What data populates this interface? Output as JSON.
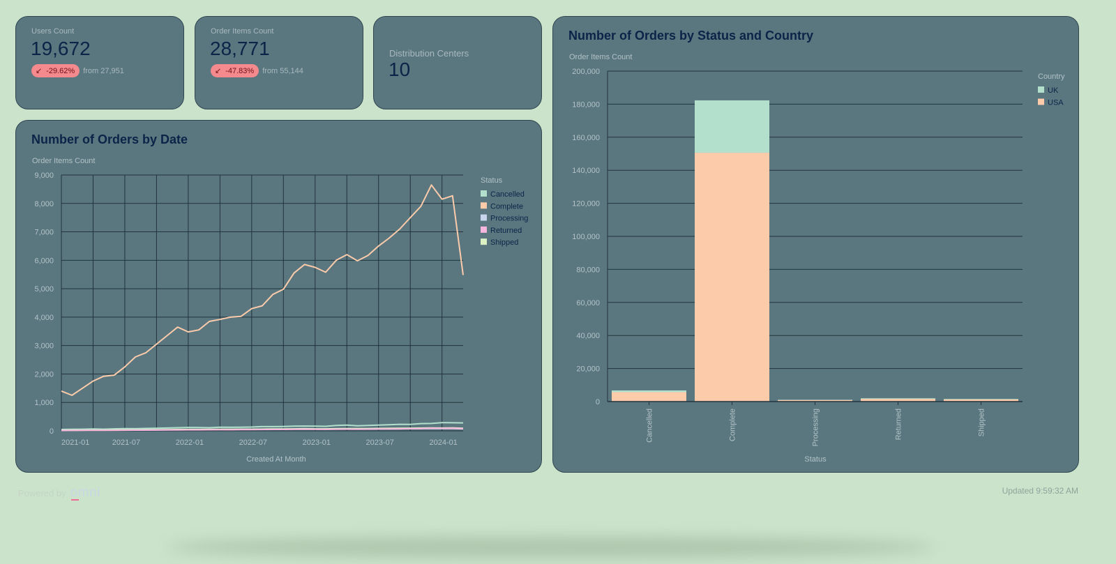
{
  "kpis": [
    {
      "label": "Users Count",
      "value": "19,672",
      "change": "-29.62%",
      "from": "from 27,951",
      "icon": "arrow-down-left-icon"
    },
    {
      "label": "Order Items Count",
      "value": "28,771",
      "change": "-47.83%",
      "from": "from 55,144",
      "icon": "arrow-down-left-icon"
    },
    {
      "label": "Distribution Centers",
      "value": "10"
    }
  ],
  "colors": {
    "background": "#cce3cb",
    "card": "#5a7780",
    "text": "#0d2347",
    "badge": "#f58a8e"
  },
  "footer": {
    "powered_by": "Powered by",
    "brand": "omni",
    "updated": "Updated 9:59:32 AM"
  },
  "chart_data": [
    {
      "type": "line",
      "title": "Number of Orders by Date",
      "ylabel": "Order Items Count",
      "xlabel": "Created At Month",
      "ylim": [
        0,
        9000
      ],
      "yticks": [
        "0",
        "1,000",
        "2,000",
        "3,000",
        "4,000",
        "5,000",
        "6,000",
        "7,000",
        "8,000",
        "9,000"
      ],
      "xticks": [
        "2021-01",
        "2021-07",
        "2022-01",
        "2022-07",
        "2023-01",
        "2023-07",
        "2024-01"
      ],
      "grid": true,
      "legend_title": "Status",
      "legend_position": "right",
      "x": [
        "2021-01",
        "2021-02",
        "2021-03",
        "2021-04",
        "2021-05",
        "2021-06",
        "2021-07",
        "2021-08",
        "2021-09",
        "2021-10",
        "2021-11",
        "2021-12",
        "2022-01",
        "2022-02",
        "2022-03",
        "2022-04",
        "2022-05",
        "2022-06",
        "2022-07",
        "2022-08",
        "2022-09",
        "2022-10",
        "2022-11",
        "2022-12",
        "2023-01",
        "2023-02",
        "2023-03",
        "2023-04",
        "2023-05",
        "2023-06",
        "2023-07",
        "2023-08",
        "2023-09",
        "2023-10",
        "2023-11",
        "2023-12",
        "2024-01",
        "2024-02",
        "2024-03"
      ],
      "series": [
        {
          "name": "Cancelled",
          "color": "#b2e0cc",
          "values": [
            50,
            55,
            60,
            65,
            60,
            70,
            80,
            75,
            85,
            90,
            100,
            110,
            120,
            115,
            110,
            130,
            125,
            130,
            135,
            150,
            150,
            155,
            165,
            170,
            165,
            160,
            190,
            200,
            180,
            190,
            200,
            215,
            230,
            225,
            255,
            260,
            290,
            285,
            280
          ]
        },
        {
          "name": "Complete",
          "color": "#fccbaa",
          "values": [
            1400,
            1250,
            1500,
            1750,
            1920,
            1960,
            2250,
            2600,
            2750,
            3050,
            3350,
            3650,
            3480,
            3550,
            3850,
            3920,
            4000,
            4030,
            4300,
            4400,
            4800,
            4980,
            5550,
            5850,
            5750,
            5580,
            6000,
            6200,
            5980,
            6170,
            6500,
            6780,
            7100,
            7500,
            7900,
            8650,
            8150,
            8270,
            5480
          ]
        },
        {
          "name": "Processing",
          "color": "#c8d6ec",
          "values": [
            15,
            18,
            20,
            22,
            22,
            25,
            28,
            28,
            30,
            32,
            35,
            38,
            40,
            40,
            42,
            45,
            45,
            48,
            50,
            52,
            55,
            55,
            58,
            60,
            60,
            58,
            62,
            65,
            62,
            65,
            68,
            70,
            72,
            75,
            78,
            82,
            80,
            82,
            70
          ]
        },
        {
          "name": "Returned",
          "color": "#f7b6dc",
          "values": [
            12,
            14,
            16,
            18,
            18,
            20,
            22,
            24,
            25,
            28,
            30,
            32,
            35,
            34,
            36,
            40,
            38,
            42,
            45,
            46,
            48,
            50,
            55,
            58,
            55,
            52,
            58,
            62,
            60,
            62,
            65,
            68,
            72,
            75,
            80,
            95,
            88,
            90,
            80
          ]
        },
        {
          "name": "Shipped",
          "color": "#dcf2c4",
          "values": [
            20,
            22,
            25,
            28,
            28,
            30,
            35,
            35,
            38,
            40,
            45,
            48,
            50,
            50,
            52,
            55,
            55,
            58,
            60,
            62,
            65,
            68,
            70,
            75,
            72,
            70,
            75,
            80,
            78,
            80,
            85,
            88,
            90,
            95,
            98,
            105,
            100,
            102,
            90
          ]
        }
      ]
    },
    {
      "type": "bar",
      "stacked": true,
      "title": "Number of Orders by Status and Country",
      "ylabel": "Order Items Count",
      "xlabel": "Status",
      "ylim": [
        0,
        200000
      ],
      "yticks": [
        "0",
        "20,000",
        "40,000",
        "60,000",
        "80,000",
        "100,000",
        "120,000",
        "140,000",
        "160,000",
        "180,000",
        "200,000"
      ],
      "categories": [
        "Cancelled",
        "Complete",
        "Processing",
        "Returned",
        "Shipped"
      ],
      "legend_title": "Country",
      "legend_position": "top-right",
      "series": [
        {
          "name": "USA",
          "color": "#fccbaa",
          "values": [
            5700,
            150600,
            900,
            1650,
            1300
          ]
        },
        {
          "name": "UK",
          "color": "#b2e0cc",
          "values": [
            1050,
            31700,
            200,
            350,
            300
          ]
        }
      ]
    }
  ]
}
